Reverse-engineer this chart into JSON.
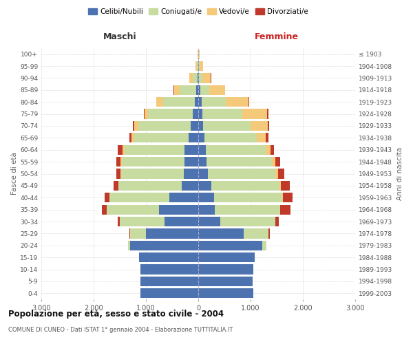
{
  "age_groups": [
    "0-4",
    "5-9",
    "10-14",
    "15-19",
    "20-24",
    "25-29",
    "30-34",
    "35-39",
    "40-44",
    "45-49",
    "50-54",
    "55-59",
    "60-64",
    "65-69",
    "70-74",
    "75-79",
    "80-84",
    "85-89",
    "90-94",
    "95-99",
    "100+"
  ],
  "birth_years": [
    "1999-2003",
    "1994-1998",
    "1989-1993",
    "1984-1988",
    "1979-1983",
    "1974-1978",
    "1969-1973",
    "1964-1968",
    "1959-1963",
    "1954-1958",
    "1949-1953",
    "1944-1948",
    "1939-1943",
    "1934-1938",
    "1929-1933",
    "1924-1928",
    "1919-1923",
    "1914-1918",
    "1909-1913",
    "1904-1908",
    "≤ 1903"
  ],
  "colors": {
    "single": "#4c72b0",
    "married": "#c8dba0",
    "widowed": "#f5c97a",
    "divorced": "#c0392b"
  },
  "males": {
    "single": [
      1100,
      1100,
      1100,
      1130,
      1300,
      1000,
      650,
      750,
      550,
      320,
      270,
      260,
      260,
      180,
      150,
      110,
      70,
      35,
      15,
      5,
      2
    ],
    "married": [
      0,
      0,
      0,
      0,
      40,
      300,
      850,
      1000,
      1150,
      1200,
      1200,
      1200,
      1150,
      1050,
      1000,
      850,
      600,
      320,
      90,
      25,
      4
    ],
    "widowed": [
      0,
      0,
      0,
      0,
      0,
      0,
      0,
      0,
      0,
      8,
      15,
      25,
      35,
      45,
      70,
      70,
      130,
      110,
      70,
      25,
      8
    ],
    "divorced": [
      0,
      0,
      0,
      0,
      0,
      15,
      40,
      90,
      90,
      90,
      80,
      75,
      90,
      45,
      25,
      15,
      4,
      4,
      2,
      1,
      0
    ]
  },
  "females": {
    "single": [
      1050,
      1040,
      1050,
      1080,
      1230,
      870,
      420,
      320,
      300,
      250,
      180,
      160,
      140,
      115,
      95,
      80,
      60,
      35,
      18,
      8,
      4
    ],
    "married": [
      0,
      0,
      0,
      0,
      70,
      470,
      1050,
      1250,
      1300,
      1300,
      1300,
      1250,
      1150,
      1000,
      900,
      760,
      470,
      180,
      60,
      18,
      4
    ],
    "widowed": [
      0,
      0,
      0,
      0,
      0,
      0,
      0,
      0,
      15,
      25,
      45,
      70,
      90,
      180,
      330,
      480,
      430,
      300,
      165,
      70,
      18
    ],
    "divorced": [
      0,
      0,
      0,
      0,
      0,
      25,
      70,
      190,
      190,
      170,
      120,
      90,
      70,
      45,
      25,
      18,
      8,
      4,
      2,
      1,
      0
    ]
  },
  "xlim": 3000,
  "title": "Popolazione per età, sesso e stato civile - 2004",
  "subtitle": "COMUNE DI CUNEO - Dati ISTAT 1° gennaio 2004 - Elaborazione TUTTITALIA.IT",
  "xlabel_left": "Maschi",
  "xlabel_right": "Femmine",
  "ylabel_left": "Fasce di età",
  "ylabel_right": "Anni di nascita",
  "background": "#ffffff",
  "legend_labels": [
    "Celibi/Nubili",
    "Coniugati/e",
    "Vedovi/e",
    "Divorziati/e"
  ]
}
